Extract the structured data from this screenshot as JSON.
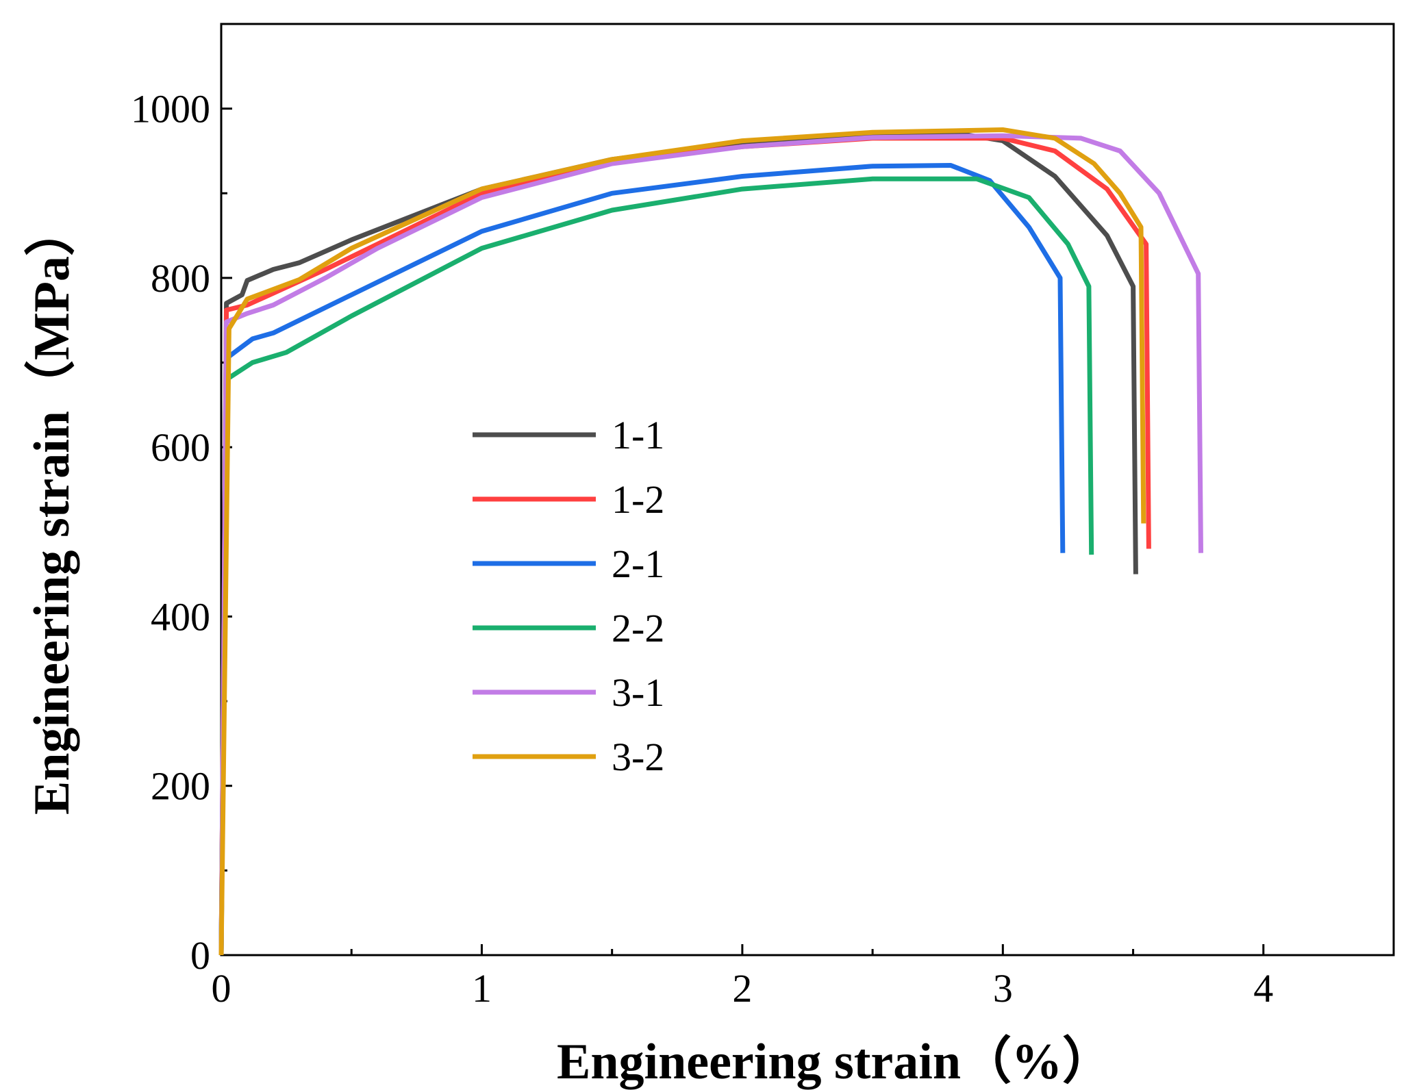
{
  "chart_data": {
    "type": "line",
    "title": "",
    "xlabel": "Engineering strain（%）",
    "ylabel": "Engineering strain（MPa）",
    "xlim": [
      0,
      4.5
    ],
    "ylim": [
      0,
      1100
    ],
    "xticks": [
      0,
      1,
      2,
      3,
      4
    ],
    "xtick_labels": [
      "0",
      "1",
      "2",
      "3",
      "4"
    ],
    "yticks": [
      0,
      200,
      400,
      600,
      800,
      1000
    ],
    "ytick_labels": [
      "0",
      "200",
      "400",
      "600",
      "800",
      "1000"
    ],
    "grid": false,
    "legend_position": "center-left",
    "series": [
      {
        "name": "1-1",
        "color": "#4d4d4d",
        "points": [
          [
            0,
            0
          ],
          [
            0.02,
            770
          ],
          [
            0.08,
            780
          ],
          [
            0.1,
            797
          ],
          [
            0.2,
            810
          ],
          [
            0.3,
            818
          ],
          [
            0.5,
            845
          ],
          [
            1.0,
            905
          ],
          [
            1.5,
            940
          ],
          [
            2.0,
            960
          ],
          [
            2.5,
            970
          ],
          [
            2.8,
            972
          ],
          [
            3.0,
            962
          ],
          [
            3.2,
            920
          ],
          [
            3.4,
            850
          ],
          [
            3.5,
            790
          ],
          [
            3.51,
            450
          ]
        ]
      },
      {
        "name": "1-2",
        "color": "#ff4040",
        "points": [
          [
            0,
            0
          ],
          [
            0.02,
            762
          ],
          [
            0.1,
            768
          ],
          [
            0.2,
            782
          ],
          [
            0.4,
            810
          ],
          [
            0.6,
            840
          ],
          [
            1.0,
            900
          ],
          [
            1.5,
            938
          ],
          [
            2.0,
            955
          ],
          [
            2.5,
            965
          ],
          [
            3.0,
            965
          ],
          [
            3.2,
            950
          ],
          [
            3.4,
            905
          ],
          [
            3.55,
            840
          ],
          [
            3.56,
            480
          ]
        ]
      },
      {
        "name": "2-1",
        "color": "#1e6ee6",
        "points": [
          [
            0,
            0
          ],
          [
            0.02,
            705
          ],
          [
            0.12,
            728
          ],
          [
            0.2,
            735
          ],
          [
            0.5,
            780
          ],
          [
            1.0,
            855
          ],
          [
            1.5,
            900
          ],
          [
            2.0,
            920
          ],
          [
            2.5,
            932
          ],
          [
            2.8,
            933
          ],
          [
            2.95,
            915
          ],
          [
            3.1,
            860
          ],
          [
            3.22,
            800
          ],
          [
            3.23,
            475
          ]
        ]
      },
      {
        "name": "2-2",
        "color": "#1aaf6e",
        "points": [
          [
            0,
            0
          ],
          [
            0.02,
            680
          ],
          [
            0.12,
            700
          ],
          [
            0.25,
            712
          ],
          [
            0.5,
            755
          ],
          [
            1.0,
            835
          ],
          [
            1.5,
            880
          ],
          [
            2.0,
            905
          ],
          [
            2.5,
            917
          ],
          [
            2.9,
            917
          ],
          [
            3.1,
            895
          ],
          [
            3.25,
            840
          ],
          [
            3.33,
            790
          ],
          [
            3.34,
            473
          ]
        ]
      },
      {
        "name": "3-1",
        "color": "#c27ce6",
        "points": [
          [
            0,
            0
          ],
          [
            0.02,
            748
          ],
          [
            0.1,
            758
          ],
          [
            0.2,
            768
          ],
          [
            0.4,
            800
          ],
          [
            0.6,
            835
          ],
          [
            1.0,
            895
          ],
          [
            1.5,
            935
          ],
          [
            2.0,
            955
          ],
          [
            2.5,
            966
          ],
          [
            3.0,
            968
          ],
          [
            3.3,
            965
          ],
          [
            3.45,
            950
          ],
          [
            3.6,
            900
          ],
          [
            3.75,
            805
          ],
          [
            3.76,
            475
          ]
        ]
      },
      {
        "name": "3-2",
        "color": "#e0a010",
        "points": [
          [
            0,
            0
          ],
          [
            0.03,
            740
          ],
          [
            0.1,
            775
          ],
          [
            0.3,
            798
          ],
          [
            0.5,
            835
          ],
          [
            1.0,
            905
          ],
          [
            1.5,
            940
          ],
          [
            2.0,
            962
          ],
          [
            2.5,
            972
          ],
          [
            3.0,
            975
          ],
          [
            3.2,
            965
          ],
          [
            3.35,
            935
          ],
          [
            3.45,
            900
          ],
          [
            3.53,
            860
          ],
          [
            3.54,
            510
          ]
        ]
      }
    ]
  }
}
